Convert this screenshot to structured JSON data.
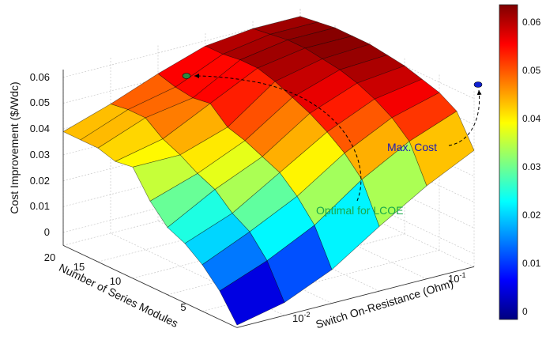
{
  "chart_data": {
    "type": "surface3d",
    "zlabel": "Cost Improvement ($/Wdc)",
    "ylabel": "Number of Series Modules",
    "xlabel": "Switch On-Resistance (Ohm)",
    "z_ticks": [
      "0",
      "0.01",
      "0.02",
      "0.03",
      "0.04",
      "0.05",
      "0.06"
    ],
    "y_ticks": [
      "5",
      "10",
      "15",
      "20"
    ],
    "x_ticks": [
      {
        "base": "10",
        "exp": "-2"
      },
      {
        "base": "10",
        "exp": "-1"
      }
    ],
    "colorbar_ticks": [
      "0",
      "0.01",
      "0.02",
      "0.03",
      "0.04",
      "0.05",
      "0.06"
    ],
    "zlim": [
      -0.005,
      0.062
    ],
    "colormap": "jet",
    "annotations": [
      {
        "text": "Max. Cost",
        "color": "#1a1ab8",
        "marker_color": "#1020d0"
      },
      {
        "text": "Optimal for LCOE",
        "color": "#1aa84a",
        "marker_color": "#2a8a40"
      }
    ],
    "resistance_rows": [
      0.005,
      0.01,
      0.02,
      0.05,
      0.1,
      0.2
    ],
    "series_modules": [
      2,
      4,
      6,
      8,
      10,
      12,
      14,
      16,
      18,
      20,
      22
    ],
    "z": [
      [
        -0.004,
        0.006,
        0.013,
        0.018,
        0.021,
        0.028,
        0.038,
        0.037,
        0.039,
        0.039,
        0.039
      ],
      [
        0.0,
        0.013,
        0.021,
        0.025,
        0.031,
        0.034,
        0.038,
        0.041,
        0.046,
        0.046,
        0.045
      ],
      [
        0.008,
        0.022,
        0.03,
        0.036,
        0.039,
        0.042,
        0.044,
        0.05,
        0.049,
        0.05,
        0.052
      ],
      [
        0.02,
        0.035,
        0.042,
        0.047,
        0.051,
        0.054,
        0.057,
        0.059,
        0.059,
        0.058,
        0.058
      ],
      [
        0.031,
        0.045,
        0.051,
        0.055,
        0.058,
        0.06,
        0.061,
        0.062,
        0.062,
        0.061,
        0.06
      ],
      [
        0.04,
        0.052,
        0.056,
        0.058,
        0.06,
        0.061,
        0.062,
        0.062,
        0.062,
        0.061,
        0.06
      ]
    ]
  }
}
